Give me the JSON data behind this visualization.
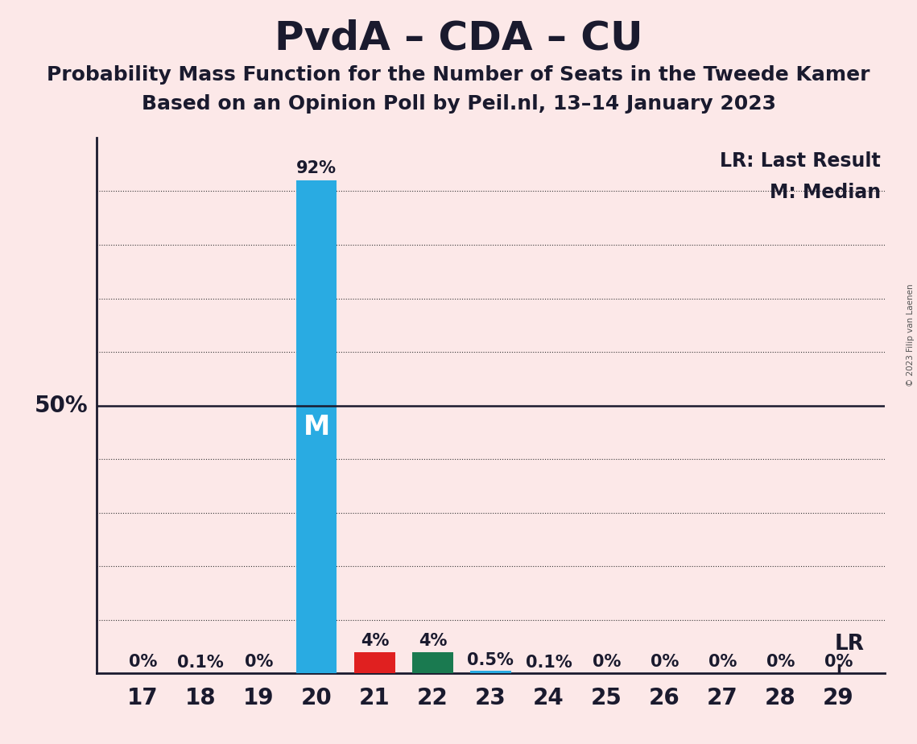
{
  "title": "PvdA – CDA – CU",
  "subtitle1": "Probability Mass Function for the Number of Seats in the Tweede Kamer",
  "subtitle2": "Based on an Opinion Poll by Peil.nl, 13–14 January 2023",
  "copyright": "© 2023 Filip van Laenen",
  "background_color": "#fce8e8",
  "seats": [
    17,
    18,
    19,
    20,
    21,
    22,
    23,
    24,
    25,
    26,
    27,
    28,
    29
  ],
  "probabilities": [
    0.0,
    0.001,
    0.0,
    0.92,
    0.04,
    0.04,
    0.005,
    0.001,
    0.0,
    0.0,
    0.0,
    0.0,
    0.0
  ],
  "labels": [
    "0%",
    "0.1%",
    "0%",
    "92%",
    "4%",
    "4%",
    "0.5%",
    "0.1%",
    "0%",
    "0%",
    "0%",
    "0%",
    "0%"
  ],
  "bar_colors": [
    "#29abe2",
    "#29abe2",
    "#29abe2",
    "#29abe2",
    "#e02020",
    "#1a7a50",
    "#29abe2",
    "#29abe2",
    "#29abe2",
    "#29abe2",
    "#29abe2",
    "#29abe2",
    "#29abe2"
  ],
  "median_seat": 20,
  "last_result_seat": 29,
  "ylim": [
    0,
    1.0
  ],
  "grid_lines": [
    0.1,
    0.2,
    0.3,
    0.4,
    0.6,
    0.7,
    0.8,
    0.9
  ],
  "fifty_pct_line": 0.5,
  "title_fontsize": 36,
  "subtitle_fontsize": 18,
  "axis_fontsize": 20,
  "label_fontsize": 15,
  "legend_fontsize": 17,
  "median_label_color": "#ffffff",
  "median_label_fontsize": 24,
  "text_color": "#1a1a2e"
}
